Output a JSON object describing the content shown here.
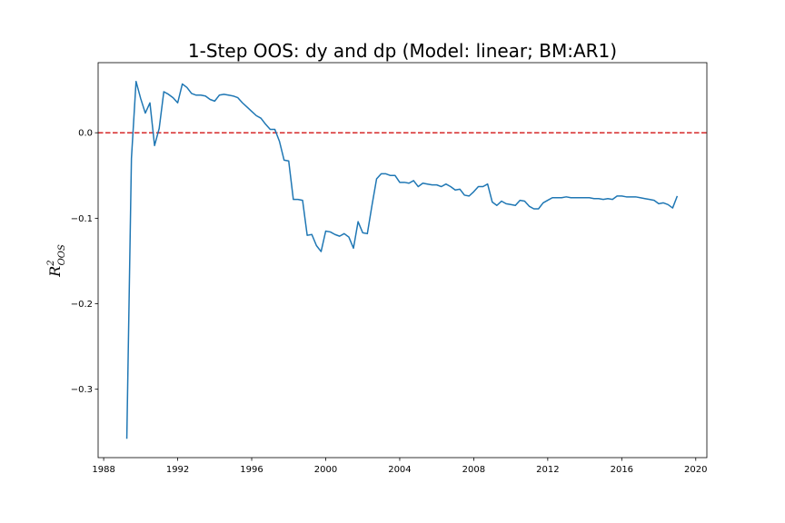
{
  "chart_data": {
    "type": "line",
    "title": "1-Step OOS: dy and dp (Model: linear; BM:AR1)",
    "ylabel": {
      "base": "R",
      "sup": "2",
      "sub": "OOS"
    },
    "xlabel": "",
    "xlim": [
      1987.7,
      2020.6
    ],
    "ylim": [
      -0.38,
      0.082
    ],
    "x_ticks": [
      1988,
      1992,
      1996,
      2000,
      2004,
      2008,
      2012,
      2016,
      2020
    ],
    "y_ticks": [
      -0.3,
      -0.2,
      -0.1,
      0.0
    ],
    "y_tick_labels": [
      "−0.3",
      "−0.2",
      "−0.1",
      "0.0"
    ],
    "reference_line": {
      "y": 0.0,
      "color": "#d62728",
      "style": "dashed"
    },
    "grid": false,
    "series": [
      {
        "color": "#1f77b4",
        "x": [
          1989.25,
          1989.5,
          1989.75,
          1990.0,
          1990.25,
          1990.5,
          1990.75,
          1991.0,
          1991.25,
          1991.5,
          1991.75,
          1992.0,
          1992.25,
          1992.5,
          1992.75,
          1993.0,
          1993.25,
          1993.5,
          1993.75,
          1994.0,
          1994.25,
          1994.5,
          1994.75,
          1995.0,
          1995.25,
          1995.5,
          1995.75,
          1996.0,
          1996.25,
          1996.5,
          1996.75,
          1997.0,
          1997.25,
          1997.5,
          1997.75,
          1998.0,
          1998.25,
          1998.5,
          1998.75,
          1999.0,
          1999.25,
          1999.5,
          1999.75,
          2000.0,
          2000.25,
          2000.5,
          2000.75,
          2001.0,
          2001.25,
          2001.5,
          2001.75,
          2002.0,
          2002.25,
          2002.5,
          2002.75,
          2003.0,
          2003.25,
          2003.5,
          2003.75,
          2004.0,
          2004.25,
          2004.5,
          2004.75,
          2005.0,
          2005.25,
          2005.5,
          2005.75,
          2006.0,
          2006.25,
          2006.5,
          2006.75,
          2007.0,
          2007.25,
          2007.5,
          2007.75,
          2008.0,
          2008.25,
          2008.5,
          2008.75,
          2009.0,
          2009.25,
          2009.5,
          2009.75,
          2010.0,
          2010.25,
          2010.5,
          2010.75,
          2011.0,
          2011.25,
          2011.5,
          2011.75,
          2012.0,
          2012.25,
          2012.5,
          2012.75,
          2013.0,
          2013.25,
          2013.5,
          2013.75,
          2014.0,
          2014.25,
          2014.5,
          2014.75,
          2015.0,
          2015.25,
          2015.5,
          2015.75,
          2016.0,
          2016.25,
          2016.5,
          2016.75,
          2017.0,
          2017.25,
          2017.5,
          2017.75,
          2018.0,
          2018.25,
          2018.5,
          2018.75,
          2019.0
        ],
        "y": [
          -0.358,
          -0.03,
          0.06,
          0.04,
          0.023,
          0.035,
          -0.015,
          0.005,
          0.048,
          0.045,
          0.041,
          0.035,
          0.057,
          0.053,
          0.046,
          0.044,
          0.044,
          0.043,
          0.039,
          0.037,
          0.044,
          0.045,
          0.044,
          0.043,
          0.041,
          0.035,
          0.03,
          0.025,
          0.02,
          0.017,
          0.01,
          0.004,
          0.004,
          -0.01,
          -0.032,
          -0.033,
          -0.078,
          -0.078,
          -0.079,
          -0.12,
          -0.119,
          -0.132,
          -0.139,
          -0.115,
          -0.116,
          -0.119,
          -0.121,
          -0.118,
          -0.122,
          -0.135,
          -0.104,
          -0.117,
          -0.118,
          -0.085,
          -0.054,
          -0.048,
          -0.048,
          -0.05,
          -0.05,
          -0.058,
          -0.058,
          -0.059,
          -0.056,
          -0.063,
          -0.059,
          -0.06,
          -0.061,
          -0.061,
          -0.063,
          -0.06,
          -0.063,
          -0.067,
          -0.066,
          -0.073,
          -0.074,
          -0.069,
          -0.063,
          -0.063,
          -0.06,
          -0.081,
          -0.085,
          -0.08,
          -0.083,
          -0.084,
          -0.085,
          -0.079,
          -0.08,
          -0.086,
          -0.089,
          -0.089,
          -0.082,
          -0.079,
          -0.076,
          -0.076,
          -0.076,
          -0.075,
          -0.076,
          -0.076,
          -0.076,
          -0.076,
          -0.076,
          -0.077,
          -0.077,
          -0.078,
          -0.077,
          -0.078,
          -0.074,
          -0.074,
          -0.075,
          -0.075,
          -0.075,
          -0.076,
          -0.077,
          -0.078,
          -0.079,
          -0.083,
          -0.082,
          -0.084,
          -0.088,
          -0.074
        ]
      }
    ]
  }
}
